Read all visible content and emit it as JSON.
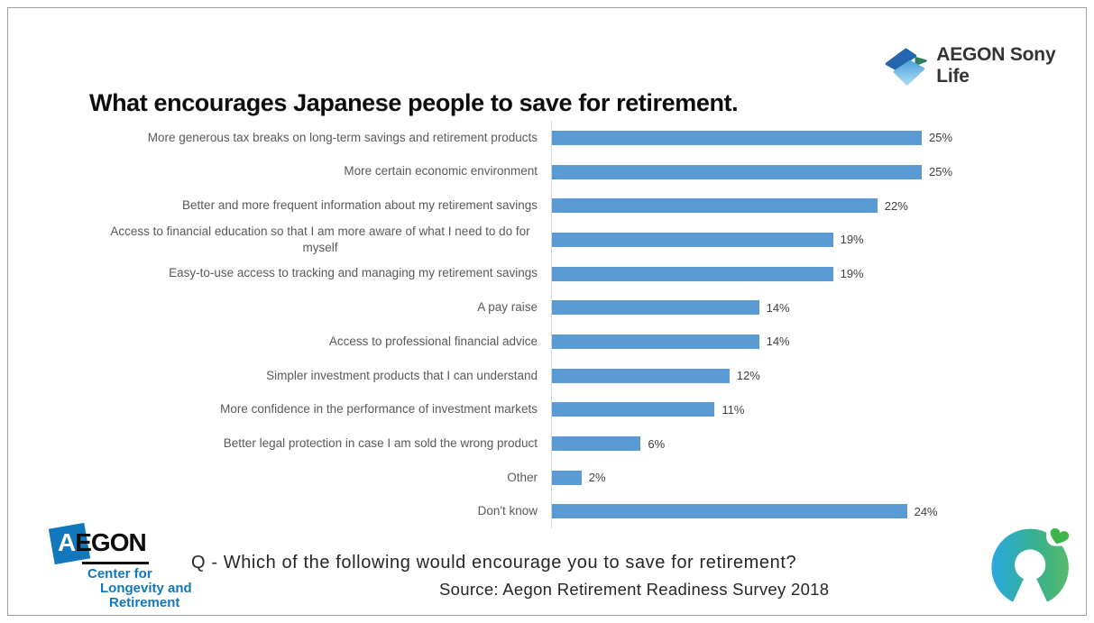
{
  "slide": {
    "title": "What encourages Japanese people to save for retirement.",
    "question": "Q - Which of the following would encourage you to save for retirement?",
    "source": "Source: Aegon Retirement Readiness Survey 2018"
  },
  "logos": {
    "top_right": {
      "text": "AEGON Sony Life"
    },
    "bottom_left": {
      "name": "AEGON",
      "white_letter": "A",
      "black_letters": "EGON",
      "line1": "Center for",
      "line2": "Longevity and",
      "line3": "Retirement"
    }
  },
  "colors": {
    "bar": "#5B9BD5",
    "aegon_blue": "#1278BE",
    "axis_line": "#D6D6D6",
    "category_text": "#595959",
    "value_text": "#404040"
  },
  "chart_data": {
    "type": "bar",
    "orientation": "horizontal",
    "title": "What encourages Japanese people to save for retirement.",
    "xlabel": "",
    "ylabel": "",
    "xlim": [
      0,
      25
    ],
    "grid": false,
    "legend": "none",
    "bar_color": "#5B9BD5",
    "categories": [
      "More generous tax breaks on long-term savings and retirement products",
      "More certain economic environment",
      "Better and more frequent information about my retirement savings",
      "Access to financial education so that I am more aware of what I need to do for myself",
      "Easy-to-use access to tracking and managing my retirement savings",
      "A pay raise",
      "Access to professional financial advice",
      "Simpler investment products that I can understand",
      "More confidence in the performance of investment markets",
      "Better legal protection in case I am sold the wrong product",
      "Other",
      "Don't know"
    ],
    "values": [
      25,
      25,
      22,
      19,
      19,
      14,
      14,
      12,
      11,
      6,
      2,
      24
    ],
    "value_labels": [
      "25%",
      "25%",
      "22%",
      "19%",
      "19%",
      "14%",
      "14%",
      "12%",
      "11%",
      "6%",
      "2%",
      "24%"
    ]
  }
}
